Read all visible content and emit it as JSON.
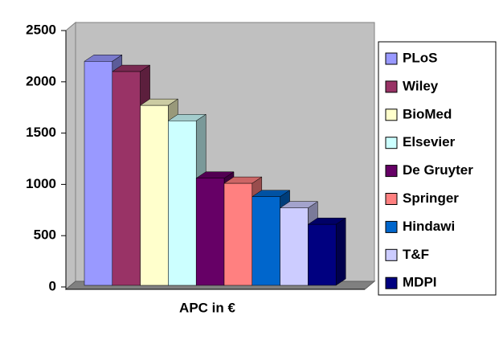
{
  "chart_data": {
    "type": "bar3d",
    "categories": [
      "APC in €"
    ],
    "series": [
      {
        "name": "PLoS",
        "color": "#9999ff",
        "values": [
          2200
        ]
      },
      {
        "name": "Wiley",
        "color": "#993366",
        "values": [
          2100
        ]
      },
      {
        "name": "BioMed",
        "color": "#ffffcc",
        "values": [
          1770
        ]
      },
      {
        "name": "Elsevier",
        "color": "#ccffff",
        "values": [
          1620
        ]
      },
      {
        "name": "De Gruyter",
        "color": "#660066",
        "values": [
          1060
        ]
      },
      {
        "name": "Springer",
        "color": "#ff8080",
        "values": [
          1010
        ]
      },
      {
        "name": "Hindawi",
        "color": "#0066cc",
        "values": [
          880
        ]
      },
      {
        "name": "T&F",
        "color": "#ccccff",
        "values": [
          770
        ]
      },
      {
        "name": "MDPI",
        "color": "#000080",
        "values": [
          610
        ]
      }
    ],
    "ylim": [
      0,
      2500
    ],
    "yticks": [
      0,
      500,
      1000,
      1500,
      2000,
      2500
    ],
    "grid": false,
    "legend": "right"
  }
}
